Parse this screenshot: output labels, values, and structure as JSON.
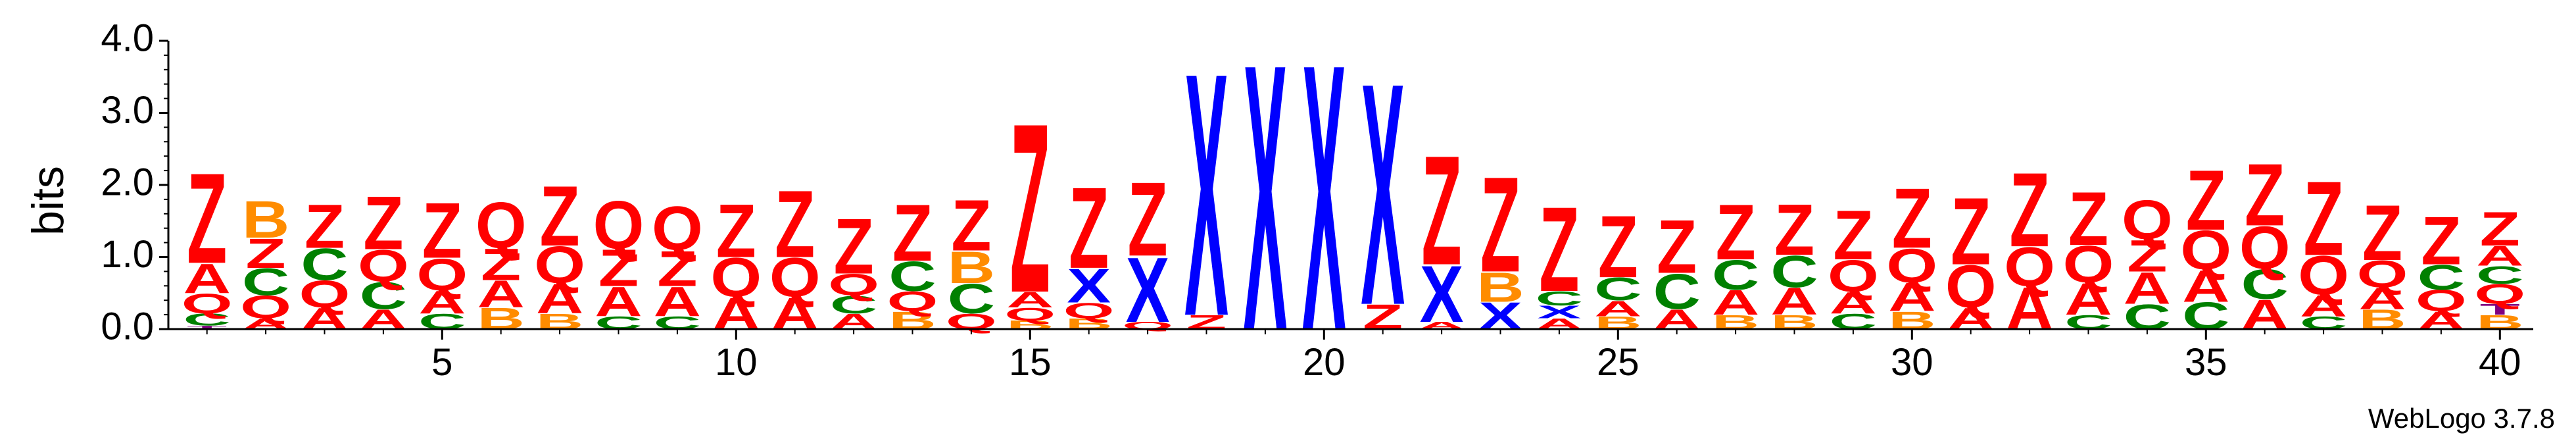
{
  "colors": {
    "Z": "#ff0000",
    "B": "#ff8c00",
    "C": "#008000",
    "Q": "#ff0000",
    "A": "#ff0000",
    "X": "#0000ff",
    "T": "#800080",
    "axis": "#000000"
  },
  "chart_data": {
    "type": "sequence-logo",
    "ylabel": "bits",
    "ylim": [
      0,
      4.0
    ],
    "y_ticks": [
      "0.0",
      "1.0",
      "2.0",
      "3.0",
      "4.0"
    ],
    "x_ticks": [
      "5",
      "10",
      "15",
      "20",
      "25",
      "30",
      "35",
      "40"
    ],
    "positions": [
      [
        [
          "T",
          0.05
        ],
        [
          "C",
          0.17
        ],
        [
          "Q",
          0.28
        ],
        [
          "A",
          0.42
        ],
        [
          "Z",
          1.28
        ]
      ],
      [
        [
          "A",
          0.15
        ],
        [
          "Q",
          0.32
        ],
        [
          "C",
          0.38
        ],
        [
          "Z",
          0.42
        ],
        [
          "B",
          0.52
        ]
      ],
      [
        [
          "A",
          0.3
        ],
        [
          "Q",
          0.38
        ],
        [
          "C",
          0.45
        ],
        [
          "Z",
          0.62
        ]
      ],
      [
        [
          "A",
          0.28
        ],
        [
          "C",
          0.38
        ],
        [
          "Q",
          0.45
        ],
        [
          "Z",
          0.75
        ]
      ],
      [
        [
          "C",
          0.22
        ],
        [
          "A",
          0.32
        ],
        [
          "Q",
          0.45
        ],
        [
          "Z",
          0.78
        ]
      ],
      [
        [
          "B",
          0.3
        ],
        [
          "A",
          0.38
        ],
        [
          "Z",
          0.45
        ],
        [
          "Q",
          0.65
        ]
      ],
      [
        [
          "B",
          0.22
        ],
        [
          "A",
          0.42
        ],
        [
          "Q",
          0.52
        ],
        [
          "Z",
          0.85
        ]
      ],
      [
        [
          "C",
          0.18
        ],
        [
          "A",
          0.42
        ],
        [
          "Z",
          0.52
        ],
        [
          "Q",
          0.68
        ]
      ],
      [
        [
          "C",
          0.18
        ],
        [
          "A",
          0.42
        ],
        [
          "Z",
          0.5
        ],
        [
          "Q",
          0.62
        ]
      ],
      [
        [
          "A",
          0.45
        ],
        [
          "Q",
          0.55
        ],
        [
          "Z",
          0.75
        ]
      ],
      [
        [
          "A",
          0.45
        ],
        [
          "Q",
          0.55
        ],
        [
          "Z",
          0.95
        ]
      ],
      [
        [
          "A",
          0.22
        ],
        [
          "C",
          0.25
        ],
        [
          "Q",
          0.3
        ],
        [
          "Z",
          0.78
        ]
      ],
      [
        [
          "B",
          0.25
        ],
        [
          "Q",
          0.28
        ],
        [
          "C",
          0.42
        ],
        [
          "Z",
          0.8
        ]
      ],
      [
        [
          "Q",
          0.22
        ],
        [
          "C",
          0.42
        ],
        [
          "B",
          0.45
        ],
        [
          "Z",
          0.72
        ]
      ],
      [
        [
          "B",
          0.12
        ],
        [
          "Q",
          0.18
        ],
        [
          "A",
          0.22
        ],
        [
          "Z",
          2.4
        ]
      ],
      [
        [
          "B",
          0.15
        ],
        [
          "Q",
          0.22
        ],
        [
          "X",
          0.48
        ],
        [
          "Z",
          1.15
        ]
      ],
      [
        [
          "Q",
          0.1
        ],
        [
          "X",
          0.92
        ],
        [
          "Z",
          1.05
        ]
      ],
      [
        [
          "Z",
          0.2
        ],
        [
          "X",
          3.45
        ]
      ],
      [
        [
          "X",
          3.78
        ]
      ],
      [
        [
          "X",
          3.78
        ]
      ],
      [
        [
          "Z",
          0.35
        ],
        [
          "X",
          3.15
        ]
      ],
      [
        [
          "A",
          0.1
        ],
        [
          "X",
          0.8
        ],
        [
          "Z",
          1.55
        ]
      ],
      [
        [
          "X",
          0.38
        ],
        [
          "B",
          0.42
        ],
        [
          "Z",
          1.35
        ]
      ],
      [
        [
          "A",
          0.15
        ],
        [
          "X",
          0.18
        ],
        [
          "C",
          0.2
        ],
        [
          "Z",
          1.2
        ]
      ],
      [
        [
          "B",
          0.18
        ],
        [
          "A",
          0.22
        ],
        [
          "C",
          0.32
        ],
        [
          "Z",
          0.88
        ]
      ],
      [
        [
          "A",
          0.28
        ],
        [
          "C",
          0.5
        ],
        [
          "Z",
          0.75
        ]
      ],
      [
        [
          "B",
          0.2
        ],
        [
          "A",
          0.35
        ],
        [
          "C",
          0.42
        ],
        [
          "Z",
          0.78
        ]
      ],
      [
        [
          "B",
          0.2
        ],
        [
          "A",
          0.38
        ],
        [
          "C",
          0.45
        ],
        [
          "Z",
          0.72
        ]
      ],
      [
        [
          "C",
          0.22
        ],
        [
          "A",
          0.3
        ],
        [
          "Q",
          0.45
        ],
        [
          "Z",
          0.7
        ]
      ],
      [
        [
          "B",
          0.25
        ],
        [
          "A",
          0.4
        ],
        [
          "Q",
          0.48
        ],
        [
          "Z",
          0.85
        ]
      ],
      [
        [
          "A",
          0.3
        ],
        [
          "Q",
          0.6
        ],
        [
          "Z",
          0.95
        ]
      ],
      [
        [
          "A",
          0.6
        ],
        [
          "Q",
          0.55
        ],
        [
          "Z",
          1.05
        ]
      ],
      [
        [
          "C",
          0.2
        ],
        [
          "A",
          0.45
        ],
        [
          "Q",
          0.52
        ],
        [
          "Z",
          0.75
        ]
      ],
      [
        [
          "C",
          0.35
        ],
        [
          "A",
          0.45
        ],
        [
          "Z",
          0.45
        ],
        [
          "Q",
          0.55
        ]
      ],
      [
        [
          "C",
          0.38
        ],
        [
          "A",
          0.45
        ],
        [
          "Q",
          0.55
        ],
        [
          "Z",
          0.85
        ]
      ],
      [
        [
          "A",
          0.42
        ],
        [
          "C",
          0.42
        ],
        [
          "Q",
          0.6
        ],
        [
          "Z",
          0.88
        ]
      ],
      [
        [
          "C",
          0.18
        ],
        [
          "A",
          0.3
        ],
        [
          "Q",
          0.55
        ],
        [
          "Z",
          1.05
        ]
      ],
      [
        [
          "B",
          0.28
        ],
        [
          "A",
          0.3
        ],
        [
          "Q",
          0.38
        ],
        [
          "Z",
          0.78
        ]
      ],
      [
        [
          "A",
          0.25
        ],
        [
          "Q",
          0.3
        ],
        [
          "C",
          0.35
        ],
        [
          "Z",
          0.68
        ]
      ],
      [
        [
          "B",
          0.2
        ],
        [
          "T",
          0.15
        ],
        [
          "Q",
          0.28
        ],
        [
          "C",
          0.25
        ],
        [
          "A",
          0.28
        ],
        [
          "Z",
          0.48
        ]
      ]
    ]
  },
  "credit": "WebLogo 3.7.8"
}
